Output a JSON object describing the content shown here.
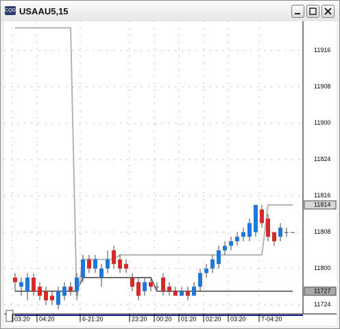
{
  "chart_data": {
    "type": "candlestick",
    "title": "USAAU5,15",
    "ylim": [
      3766,
      3830
    ],
    "yticks": [
      {
        "value": 3824,
        "label": "11916"
      },
      {
        "value": 3816,
        "label": "11908"
      },
      {
        "value": 3808,
        "label": "11900"
      },
      {
        "value": 3800,
        "label": "11824"
      },
      {
        "value": 3792,
        "label": "11816"
      },
      {
        "value": 3784,
        "label": "11808"
      },
      {
        "value": 3776,
        "label": "11800"
      },
      {
        "value": 3768,
        "label": "11724"
      }
    ],
    "xlim": [
      -1,
      46
    ],
    "xticks": [
      {
        "value": 0,
        "label": "03:20"
      },
      {
        "value": 4,
        "label": "04:20"
      },
      {
        "value": 11,
        "label": "6-21:20"
      },
      {
        "value": 19,
        "label": "23:20"
      },
      {
        "value": 23,
        "label": "00:20"
      },
      {
        "value": 27,
        "label": "01:20"
      },
      {
        "value": 31,
        "label": "02:20"
      },
      {
        "value": 35,
        "label": "03:20"
      },
      {
        "value": 40,
        "label": "7-04:20"
      }
    ],
    "grid": true,
    "up_color": "#1f77d8",
    "down_color": "#d42a2a",
    "flat_color": "#555555",
    "open": [
      3774,
      3772,
      3771,
      3774,
      3772,
      3771,
      3770,
      3768,
      3770,
      3772,
      3771,
      3774,
      3778,
      3776,
      3774,
      3776,
      3780,
      3778,
      3777,
      3774,
      3773,
      3771,
      3773,
      3772,
      3774,
      3772,
      3771,
      3770,
      3771,
      3770,
      3772,
      3775,
      3776,
      3777,
      3780,
      3781,
      3782,
      3783,
      3783,
      3784,
      3789,
      3787,
      3784,
      3783,
      3784,
      3784
    ],
    "high": [
      3775,
      3774,
      3775,
      3775,
      3773,
      3772,
      3771,
      3772,
      3773,
      3773,
      3775,
      3779,
      3779,
      3779,
      3777,
      3780,
      3781,
      3779,
      3778,
      3775,
      3774,
      3774,
      3774,
      3773,
      3775,
      3773,
      3772,
      3772,
      3772,
      3773,
      3776,
      3777,
      3779,
      3781,
      3782,
      3783,
      3784,
      3785,
      3787,
      3790,
      3790,
      3788,
      3784,
      3786,
      3785,
      3784
    ],
    "low": [
      3771,
      3770,
      3769,
      3770,
      3769,
      3768,
      3768,
      3767,
      3769,
      3770,
      3770,
      3773,
      3775,
      3775,
      3772,
      3775,
      3776,
      3775,
      3775,
      3771,
      3769,
      3770,
      3771,
      3771,
      3770,
      3770,
      3770,
      3770,
      3769,
      3770,
      3771,
      3774,
      3775,
      3776,
      3779,
      3780,
      3781,
      3782,
      3782,
      3783,
      3785,
      3782,
      3781,
      3782,
      3783,
      3784
    ],
    "close": [
      3773,
      3773,
      3774,
      3771,
      3770,
      3769,
      3769,
      3771,
      3772,
      3771,
      3774,
      3778,
      3776,
      3778,
      3776,
      3778,
      3777,
      3776,
      3776,
      3772,
      3770,
      3773,
      3772,
      3772,
      3771,
      3771,
      3770,
      3771,
      3770,
      3772,
      3775,
      3776,
      3778,
      3780,
      3781,
      3782,
      3783,
      3784,
      3786,
      3790,
      3786,
      3783,
      3782,
      3785,
      3784,
      3784
    ],
    "series": [
      {
        "color": "#6e6e6e",
        "values": [
          3771,
          3771,
          3771,
          3771,
          3771,
          3771,
          3771,
          3771,
          3771,
          3771,
          3771,
          3774,
          3774,
          3774,
          3774,
          3774,
          3774,
          3774,
          3774,
          3774,
          3774,
          3774,
          3774,
          3771,
          3771,
          3771,
          3771,
          3771,
          3771,
          3771,
          3771,
          3771,
          3771,
          3771,
          3771,
          3771,
          3771,
          3771,
          3771,
          3771,
          3771,
          3771,
          3771,
          3771,
          3771,
          3771
        ]
      },
      {
        "color": "#b4b4b4",
        "values": [
          3829,
          3829,
          3829,
          3829,
          3829,
          3829,
          3829,
          3829,
          3829,
          3829,
          3769,
          3778,
          3778,
          3778,
          3778,
          3778,
          3778,
          3779,
          3779,
          3779,
          3779,
          3779,
          3779,
          3779,
          3779,
          3779,
          3779,
          3779,
          3779,
          3779,
          3779,
          3779,
          3779,
          3779,
          3779,
          3779,
          3779,
          3779,
          3779,
          3779,
          3779,
          3790,
          3790,
          3790,
          3790,
          3790
        ]
      }
    ],
    "price_markers": [
      {
        "value": 3790,
        "label": "11814",
        "color": "#d8d8d8"
      },
      {
        "value": 3771,
        "label": "11727",
        "color": "#a8a8a8"
      }
    ]
  }
}
